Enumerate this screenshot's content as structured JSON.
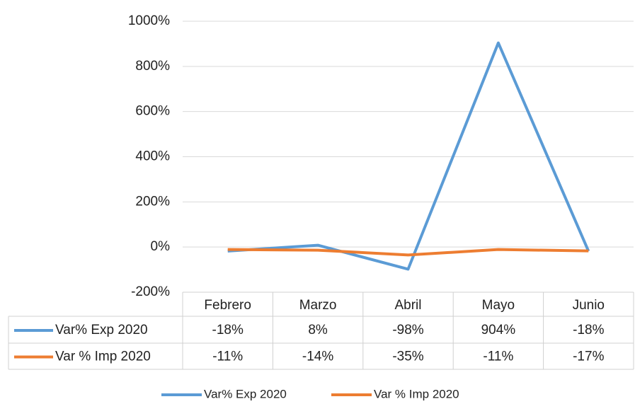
{
  "chart_data": {
    "type": "line",
    "categories": [
      "Febrero",
      "Marzo",
      "Abril",
      "Mayo",
      "Junio"
    ],
    "series": [
      {
        "name": "Var% Exp 2020",
        "color": "#5b9bd5",
        "values": [
          -18,
          8,
          -98,
          904,
          -18
        ],
        "value_labels": [
          "-18%",
          "8%",
          "-98%",
          "904%",
          "-18%"
        ]
      },
      {
        "name": "Var % Imp 2020",
        "color": "#ed7d31",
        "values": [
          -11,
          -14,
          -35,
          -11,
          -17
        ],
        "value_labels": [
          "-11%",
          "-14%",
          "-35%",
          "-11%",
          "-17%"
        ]
      }
    ],
    "ylim": [
      -200,
      1000
    ],
    "yticks": [
      {
        "value": -200,
        "label": "-200%"
      },
      {
        "value": 0,
        "label": "0%"
      },
      {
        "value": 200,
        "label": "200%"
      },
      {
        "value": 400,
        "label": "400%"
      },
      {
        "value": 600,
        "label": "600%"
      },
      {
        "value": 800,
        "label": "800%"
      },
      {
        "value": 1000,
        "label": "1000%"
      }
    ],
    "grid": true,
    "legend": "bottom"
  }
}
